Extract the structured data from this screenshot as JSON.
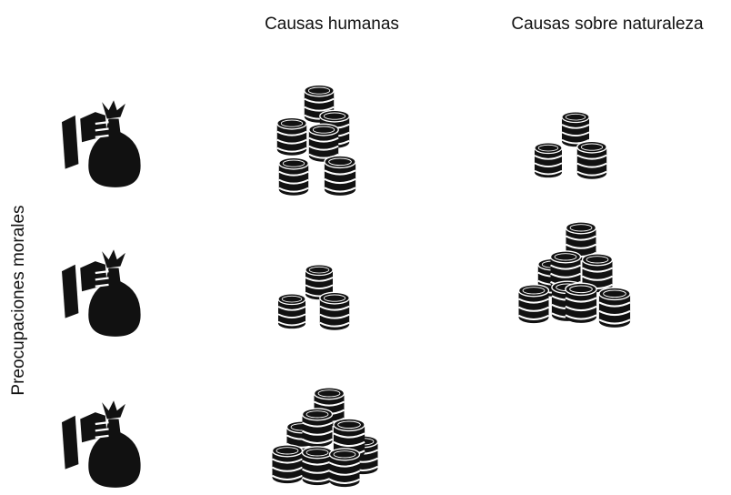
{
  "headers": [
    "Causas humanas",
    "Causas sobre naturaleza"
  ],
  "row_label": "Preocupaciones morales"
}
